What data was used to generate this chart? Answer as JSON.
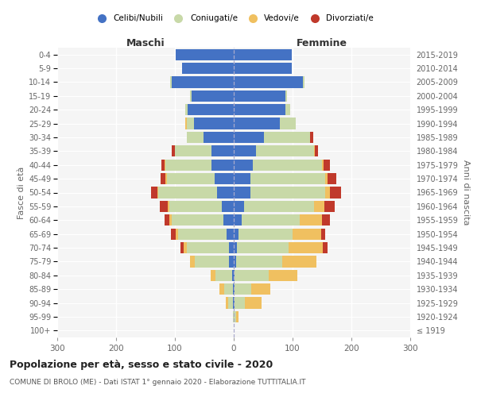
{
  "age_groups": [
    "100+",
    "95-99",
    "90-94",
    "85-89",
    "80-84",
    "75-79",
    "70-74",
    "65-69",
    "60-64",
    "55-59",
    "50-54",
    "45-49",
    "40-44",
    "35-39",
    "30-34",
    "25-29",
    "20-24",
    "15-19",
    "10-14",
    "5-9",
    "0-4"
  ],
  "birth_years": [
    "≤ 1919",
    "1920-1924",
    "1925-1929",
    "1930-1934",
    "1935-1939",
    "1940-1944",
    "1945-1949",
    "1950-1954",
    "1955-1959",
    "1960-1964",
    "1965-1969",
    "1970-1974",
    "1975-1979",
    "1980-1984",
    "1985-1989",
    "1990-1994",
    "1995-1999",
    "2000-2004",
    "2005-2009",
    "2010-2014",
    "2015-2019"
  ],
  "male_celibi": [
    0,
    0,
    1,
    2,
    3,
    8,
    8,
    12,
    18,
    20,
    28,
    32,
    38,
    38,
    52,
    68,
    78,
    72,
    105,
    88,
    98
  ],
  "male_coniugati": [
    0,
    2,
    8,
    14,
    28,
    58,
    72,
    82,
    88,
    90,
    100,
    82,
    78,
    62,
    28,
    12,
    5,
    2,
    3,
    0,
    0
  ],
  "male_vedovi": [
    0,
    0,
    5,
    8,
    8,
    8,
    5,
    5,
    3,
    2,
    2,
    2,
    2,
    0,
    0,
    3,
    0,
    0,
    0,
    0,
    0
  ],
  "male_divorziati": [
    0,
    0,
    0,
    0,
    0,
    0,
    5,
    8,
    8,
    14,
    10,
    8,
    5,
    5,
    0,
    0,
    0,
    0,
    0,
    0,
    0
  ],
  "female_nubili": [
    0,
    0,
    1,
    2,
    2,
    4,
    5,
    8,
    14,
    18,
    28,
    28,
    32,
    38,
    52,
    78,
    88,
    88,
    118,
    98,
    98
  ],
  "female_coniugate": [
    0,
    4,
    18,
    28,
    58,
    78,
    88,
    92,
    98,
    118,
    128,
    128,
    118,
    98,
    78,
    28,
    8,
    2,
    2,
    0,
    0
  ],
  "female_vedove": [
    0,
    4,
    28,
    32,
    48,
    58,
    58,
    48,
    38,
    18,
    8,
    4,
    3,
    2,
    0,
    0,
    0,
    0,
    0,
    0,
    0
  ],
  "female_divorziate": [
    0,
    0,
    0,
    0,
    0,
    0,
    8,
    8,
    14,
    18,
    18,
    14,
    10,
    5,
    5,
    0,
    0,
    0,
    0,
    0,
    0
  ],
  "colors_celibi": "#4472c4",
  "colors_coniugati": "#c8d9a8",
  "colors_vedovi": "#f0c060",
  "colors_divorziati": "#c0392b",
  "xlim": 300,
  "title": "Popolazione per età, sesso e stato civile - 2020",
  "subtitle": "COMUNE DI BROLO (ME) - Dati ISTAT 1° gennaio 2020 - Elaborazione TUTTITALIA.IT",
  "label_maschi": "Maschi",
  "label_femmine": "Femmine",
  "ylabel_left": "Fasce di età",
  "ylabel_right": "Anni di nascita",
  "legend_labels": [
    "Celibi/Nubili",
    "Coniugati/e",
    "Vedovi/e",
    "Divorziati/e"
  ],
  "bg_color": "#f5f5f5",
  "grid_color": "white"
}
